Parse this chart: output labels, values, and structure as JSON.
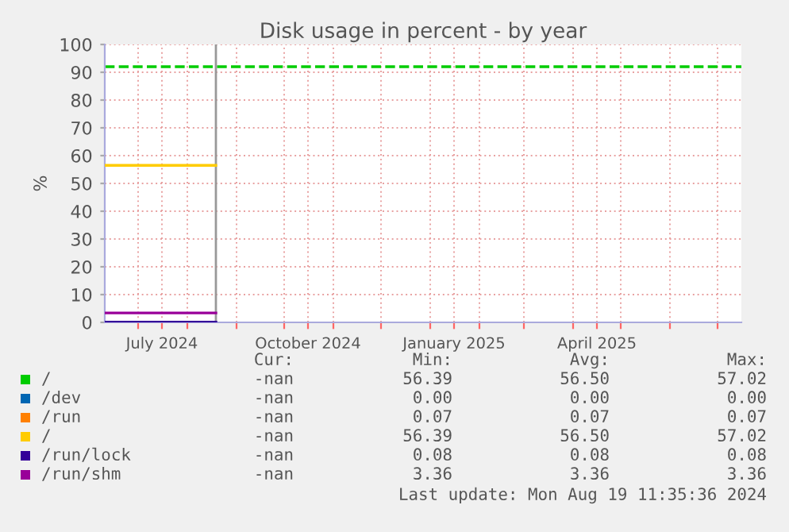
{
  "chart_data": {
    "type": "line",
    "title": "Disk usage in percent - by year",
    "ylabel": "%",
    "xlim": [
      "2024-06-10",
      "2025-07-16"
    ],
    "ylim": [
      0,
      100
    ],
    "yticks": [
      0,
      10,
      20,
      30,
      40,
      50,
      60,
      70,
      80,
      90,
      100
    ],
    "xticks": [
      {
        "value": "2024-07-01",
        "label": null
      },
      {
        "value": "2024-07-16",
        "label": "July 2024"
      },
      {
        "value": "2024-08-01",
        "label": null
      },
      {
        "value": "2024-09-01",
        "label": null
      },
      {
        "value": "2024-10-01",
        "label": null
      },
      {
        "value": "2024-10-16",
        "label": "October 2024"
      },
      {
        "value": "2024-11-01",
        "label": null
      },
      {
        "value": "2024-12-01",
        "label": null
      },
      {
        "value": "2025-01-01",
        "label": null
      },
      {
        "value": "2025-01-16",
        "label": "January 2025"
      },
      {
        "value": "2025-02-01",
        "label": null
      },
      {
        "value": "2025-03-01",
        "label": null
      },
      {
        "value": "2025-04-01",
        "label": null
      },
      {
        "value": "2025-04-16",
        "label": "April 2025"
      },
      {
        "value": "2025-05-01",
        "label": null
      },
      {
        "value": "2025-06-01",
        "label": null
      },
      {
        "value": "2025-07-01",
        "label": null
      }
    ],
    "grid": true,
    "legend": "bottom",
    "marker": "none",
    "line_style": "solid",
    "series": [
      {
        "name": "/",
        "color": "#00cc00"
      },
      {
        "name": "/dev",
        "color": "#0066b3"
      },
      {
        "name": "/run",
        "color": "#ff8000"
      },
      {
        "name": "/",
        "color": "#ffcc00",
        "x": [
          "2024-06-10",
          "2024-08-19"
        ],
        "values": [
          56.5,
          56.5
        ]
      },
      {
        "name": "/run/lock",
        "color": "#330099",
        "x": [
          "2024-06-10",
          "2024-08-19"
        ],
        "values": [
          0.1,
          0.1
        ]
      },
      {
        "name": "/run/shm",
        "color": "#990099",
        "x": [
          "2024-06-10",
          "2024-08-19"
        ],
        "values": [
          3.4,
          3.4
        ]
      }
    ],
    "ref_lines": [
      {
        "axis": "y",
        "value": 92,
        "label": null,
        "color": "#00cc00",
        "line_style": "dashed"
      },
      {
        "axis": "x",
        "value": "2024-08-19",
        "label": null,
        "color": "#999999",
        "line_style": "solid"
      }
    ],
    "annotations": [
      "Cur:",
      "Min:",
      "Avg:",
      "Max:",
      "-nan",
      "56.39",
      "56.50",
      "57.02",
      "-nan",
      "0.00",
      "0.00",
      "0.00",
      "-nan",
      "0.07",
      "0.07",
      "0.07",
      "-nan",
      "56.39",
      "56.50",
      "57.02",
      "-nan",
      "0.08",
      "0.08",
      "0.08",
      "-nan",
      "3.36",
      "3.36",
      "3.36",
      "Last update: Mon Aug 19 11:35:36 2024"
    ]
  }
}
